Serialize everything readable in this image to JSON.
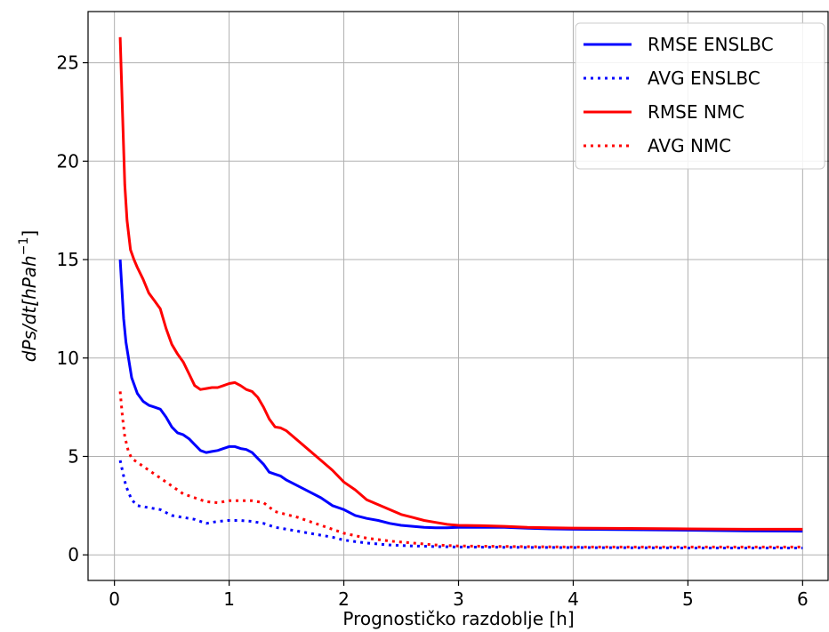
{
  "chart_data": {
    "type": "line",
    "xlabel": "Prognostičko razdoblje [h]",
    "ylabel_parts": {
      "base": "dPs/dt[hPah",
      "sup": "−1",
      "close": "]"
    },
    "xlim": [
      -0.23,
      6.23
    ],
    "ylim": [
      -1.3,
      27.6
    ],
    "xticks": [
      0,
      1,
      2,
      3,
      4,
      5,
      6
    ],
    "xtick_labels": [
      "0",
      "1",
      "2",
      "3",
      "4",
      "5",
      "6"
    ],
    "yticks": [
      0,
      5,
      10,
      15,
      20,
      25
    ],
    "ytick_labels": [
      "0",
      "5",
      "10",
      "15",
      "20",
      "25"
    ],
    "grid": true,
    "legend_position": "upper right",
    "series": [
      {
        "name": "RMSE ENSLBC",
        "color": "#0000ff",
        "style": "solid",
        "x": [
          0.05,
          0.08,
          0.1,
          0.15,
          0.2,
          0.25,
          0.3,
          0.35,
          0.4,
          0.45,
          0.5,
          0.55,
          0.6,
          0.65,
          0.7,
          0.75,
          0.8,
          0.85,
          0.9,
          0.95,
          1.0,
          1.05,
          1.1,
          1.15,
          1.2,
          1.25,
          1.3,
          1.35,
          1.4,
          1.45,
          1.5,
          1.6,
          1.7,
          1.8,
          1.9,
          2.0,
          2.1,
          2.2,
          2.3,
          2.4,
          2.5,
          2.6,
          2.7,
          2.8,
          2.9,
          3.0,
          3.2,
          3.4,
          3.6,
          3.8,
          4.0,
          4.5,
          5.0,
          5.5,
          6.0
        ],
        "y": [
          15.0,
          12.0,
          10.8,
          9.0,
          8.2,
          7.8,
          7.6,
          7.5,
          7.4,
          7.0,
          6.5,
          6.2,
          6.1,
          5.9,
          5.6,
          5.3,
          5.2,
          5.25,
          5.3,
          5.4,
          5.5,
          5.5,
          5.4,
          5.35,
          5.2,
          4.9,
          4.6,
          4.2,
          4.1,
          4.0,
          3.8,
          3.5,
          3.2,
          2.9,
          2.5,
          2.3,
          2.0,
          1.85,
          1.75,
          1.6,
          1.5,
          1.45,
          1.4,
          1.38,
          1.38,
          1.4,
          1.4,
          1.4,
          1.35,
          1.32,
          1.3,
          1.28,
          1.25,
          1.22,
          1.2
        ]
      },
      {
        "name": "AVG ENSLBC",
        "color": "#0000ff",
        "style": "dotted",
        "x": [
          0.05,
          0.08,
          0.1,
          0.15,
          0.2,
          0.3,
          0.4,
          0.5,
          0.6,
          0.7,
          0.8,
          0.9,
          1.0,
          1.1,
          1.2,
          1.3,
          1.4,
          1.5,
          1.6,
          1.7,
          1.8,
          1.9,
          2.0,
          2.2,
          2.4,
          2.6,
          2.8,
          3.0,
          3.5,
          4.0,
          4.5,
          5.0,
          5.5,
          6.0
        ],
        "y": [
          4.8,
          4.0,
          3.5,
          2.8,
          2.5,
          2.4,
          2.3,
          2.0,
          1.9,
          1.8,
          1.6,
          1.7,
          1.75,
          1.75,
          1.7,
          1.6,
          1.4,
          1.3,
          1.2,
          1.1,
          1.0,
          0.9,
          0.75,
          0.6,
          0.5,
          0.45,
          0.42,
          0.4,
          0.38,
          0.37,
          0.36,
          0.35,
          0.35,
          0.35
        ]
      },
      {
        "name": "RMSE NMC",
        "color": "#ff0000",
        "style": "solid",
        "x": [
          0.05,
          0.07,
          0.09,
          0.11,
          0.14,
          0.17,
          0.2,
          0.25,
          0.3,
          0.35,
          0.4,
          0.45,
          0.5,
          0.55,
          0.6,
          0.65,
          0.7,
          0.75,
          0.8,
          0.85,
          0.9,
          0.95,
          1.0,
          1.05,
          1.1,
          1.15,
          1.2,
          1.25,
          1.3,
          1.35,
          1.4,
          1.45,
          1.5,
          1.6,
          1.7,
          1.8,
          1.9,
          2.0,
          2.1,
          2.2,
          2.3,
          2.4,
          2.5,
          2.6,
          2.7,
          2.8,
          2.9,
          3.0,
          3.2,
          3.4,
          3.6,
          3.8,
          4.0,
          4.5,
          5.0,
          5.5,
          6.0
        ],
        "y": [
          26.3,
          22.5,
          18.8,
          17.0,
          15.5,
          15.0,
          14.6,
          14.0,
          13.3,
          12.9,
          12.5,
          11.5,
          10.7,
          10.2,
          9.8,
          9.2,
          8.6,
          8.4,
          8.45,
          8.5,
          8.5,
          8.6,
          8.7,
          8.75,
          8.6,
          8.4,
          8.3,
          8.0,
          7.5,
          6.9,
          6.5,
          6.45,
          6.3,
          5.8,
          5.3,
          4.8,
          4.3,
          3.7,
          3.3,
          2.8,
          2.55,
          2.3,
          2.05,
          1.9,
          1.75,
          1.65,
          1.55,
          1.5,
          1.48,
          1.45,
          1.4,
          1.38,
          1.36,
          1.34,
          1.32,
          1.3,
          1.3
        ]
      },
      {
        "name": "AVG NMC",
        "color": "#ff0000",
        "style": "dotted",
        "x": [
          0.05,
          0.07,
          0.09,
          0.12,
          0.15,
          0.2,
          0.25,
          0.3,
          0.4,
          0.5,
          0.6,
          0.7,
          0.8,
          0.9,
          1.0,
          1.1,
          1.2,
          1.3,
          1.4,
          1.5,
          1.6,
          1.7,
          1.8,
          1.9,
          2.0,
          2.2,
          2.4,
          2.6,
          2.8,
          3.0,
          3.5,
          4.0,
          4.5,
          5.0,
          5.5,
          6.0
        ],
        "y": [
          8.3,
          7.0,
          6.0,
          5.3,
          4.9,
          4.7,
          4.5,
          4.3,
          3.9,
          3.5,
          3.1,
          2.9,
          2.7,
          2.65,
          2.75,
          2.75,
          2.75,
          2.65,
          2.2,
          2.05,
          1.9,
          1.7,
          1.5,
          1.3,
          1.1,
          0.85,
          0.7,
          0.6,
          0.5,
          0.45,
          0.42,
          0.4,
          0.4,
          0.4,
          0.4,
          0.4
        ]
      }
    ]
  }
}
